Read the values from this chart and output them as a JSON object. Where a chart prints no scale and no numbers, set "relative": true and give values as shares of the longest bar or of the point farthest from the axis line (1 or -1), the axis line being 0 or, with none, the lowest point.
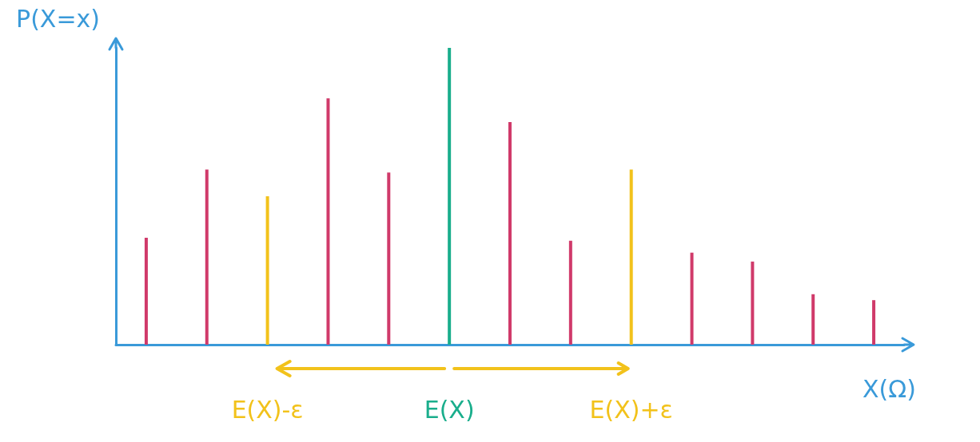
{
  "chart_data": {
    "type": "bar",
    "relative": true,
    "xlabel": "X(Ω)",
    "ylabel": "P(X=x)",
    "categories": [
      null,
      null,
      "E(X)-ε",
      null,
      null,
      "E(X)",
      null,
      null,
      "E(X)+ε",
      null,
      null,
      null,
      null
    ],
    "series": [
      {
        "color": "#d03a6a",
        "values": [
          0.36,
          0.59,
          null,
          0.83,
          0.58,
          null,
          0.75,
          0.35,
          null,
          0.31,
          0.28,
          0.17,
          0.15
        ]
      },
      {
        "color": "#1aae8c",
        "values": [
          null,
          null,
          null,
          null,
          null,
          1,
          null,
          null,
          null,
          null,
          null,
          null,
          null
        ]
      },
      {
        "color": "#f2c21b",
        "values": [
          null,
          null,
          0.5,
          null,
          null,
          null,
          null,
          null,
          0.59,
          null,
          null,
          null,
          null
        ]
      }
    ],
    "grid": false
  }
}
